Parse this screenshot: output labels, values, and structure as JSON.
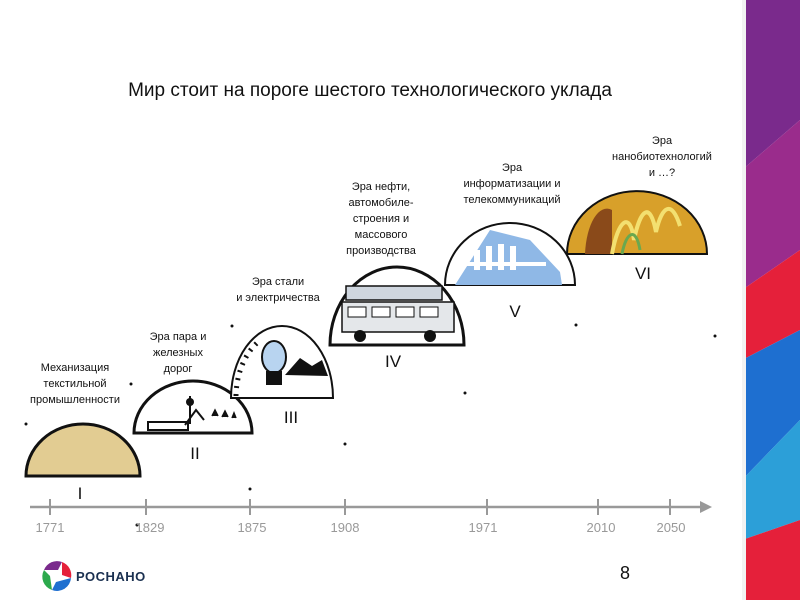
{
  "title": "Мир стоит на пороге шестого технологического уклада",
  "timeline": {
    "years": [
      "1771",
      "1829",
      "1875",
      "1908",
      "1971",
      "2010",
      "2050"
    ]
  },
  "eras": [
    {
      "numeral": "I",
      "label": "Механизация\nтекстильной\nпромышленности"
    },
    {
      "numeral": "II",
      "label": "Эра пара и\nжелезных\nдорог"
    },
    {
      "numeral": "III",
      "label": "Эра стали\nи электричества"
    },
    {
      "numeral": "IV",
      "label": "Эра нефти,\nавтомобиле-\nстроения и\nмассового\nпроизводства"
    },
    {
      "numeral": "V",
      "label": "Эра\nинформатизации и\nтелекоммуникаций"
    },
    {
      "numeral": "VI",
      "label": "Эра\nнанобиотехнологий\nи …?"
    }
  ],
  "page_number": "8",
  "logo": {
    "name": "РОСНАНО"
  },
  "colors": {
    "axis": "#999999",
    "dome_fill_1": "#e2cc92",
    "dome_fill_5": "#8fb8e6",
    "dome_fill_6": "#d8a02a",
    "stripe_purple": "#7a2a8c",
    "stripe_red": "#e5203a",
    "stripe_blue": "#1e6fd0"
  }
}
